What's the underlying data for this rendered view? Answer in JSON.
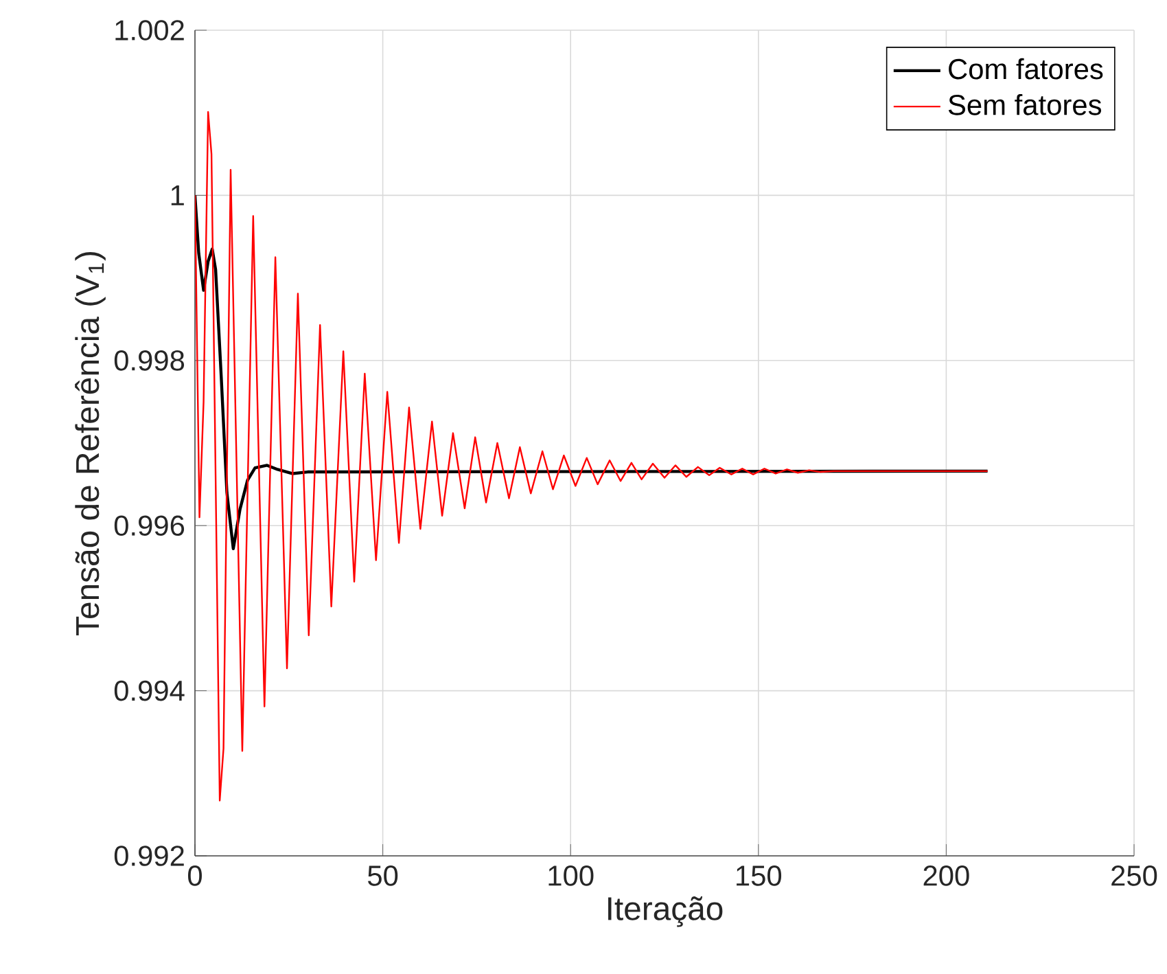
{
  "chart_data": {
    "type": "line",
    "xlabel": "Iteração",
    "ylabel": "Tensão de Referência (V$_{1}$)",
    "xlim": [
      0,
      250
    ],
    "ylim": [
      0.992,
      1.002
    ],
    "xticks": [
      0,
      50,
      100,
      150,
      200,
      250
    ],
    "yticks": [
      0.992,
      0.994,
      0.996,
      0.998,
      1,
      1.002
    ],
    "grid": true,
    "legend": "top right",
    "line_style": "solid",
    "marker": "none",
    "series": [
      {
        "name": "Com fatores",
        "color": "#000000",
        "x": [
          0,
          1,
          2.3,
          3.5,
          4.6,
          5.5,
          7,
          8.5,
          10.2,
          12,
          14,
          16,
          19.2,
          22,
          25.9,
          30,
          211
        ],
        "values": [
          1.0,
          0.9993,
          0.99885,
          0.9992,
          0.99935,
          0.9991,
          0.9978,
          0.9964,
          0.99572,
          0.9962,
          0.99655,
          0.9967,
          0.99673,
          0.99668,
          0.99663,
          0.99665,
          0.99666
        ]
      },
      {
        "name": "Sem fatores",
        "color": "#ff0000",
        "x": [
          0,
          1.2,
          2.3,
          3.5,
          4.4,
          6.6,
          7.6,
          9.5,
          12.6,
          15.5,
          18.5,
          21.4,
          24.5,
          27.4,
          30.3,
          33.3,
          36.3,
          39.5,
          42.4,
          45.2,
          48.2,
          51.2,
          54.3,
          57,
          60,
          63.1,
          65.8,
          68.7,
          71.8,
          74.6,
          77.5,
          80.5,
          83.6,
          86.5,
          89.4,
          92.5,
          95.3,
          98.2,
          101.3,
          104.3,
          107.2,
          110.4,
          113.3,
          116.2,
          118.9,
          121.9,
          125,
          127.9,
          130.8,
          133.9,
          136.9,
          139.7,
          142.8,
          145.7,
          148.6,
          151.6,
          154.6,
          157.6,
          160.5,
          163.5,
          166.5,
          170,
          211
        ],
        "values": [
          1.0,
          0.9961,
          0.9975,
          1.00101,
          1.0005,
          0.99267,
          0.9933,
          1.00031,
          0.99327,
          0.99975,
          0.99381,
          0.99925,
          0.99427,
          0.99881,
          0.99467,
          0.99843,
          0.99502,
          0.99811,
          0.99532,
          0.99784,
          0.99558,
          0.99762,
          0.99579,
          0.99743,
          0.99596,
          0.99726,
          0.99612,
          0.99712,
          0.99621,
          0.99707,
          0.99628,
          0.997,
          0.99633,
          0.99695,
          0.99639,
          0.9969,
          0.99644,
          0.99685,
          0.99648,
          0.99682,
          0.9965,
          0.99679,
          0.99654,
          0.99676,
          0.99656,
          0.99675,
          0.99658,
          0.99673,
          0.99659,
          0.99671,
          0.99661,
          0.9967,
          0.99662,
          0.99669,
          0.99662,
          0.99669,
          0.99663,
          0.99668,
          0.99664,
          0.99667,
          0.99665,
          0.99666,
          0.99666
        ]
      }
    ]
  }
}
